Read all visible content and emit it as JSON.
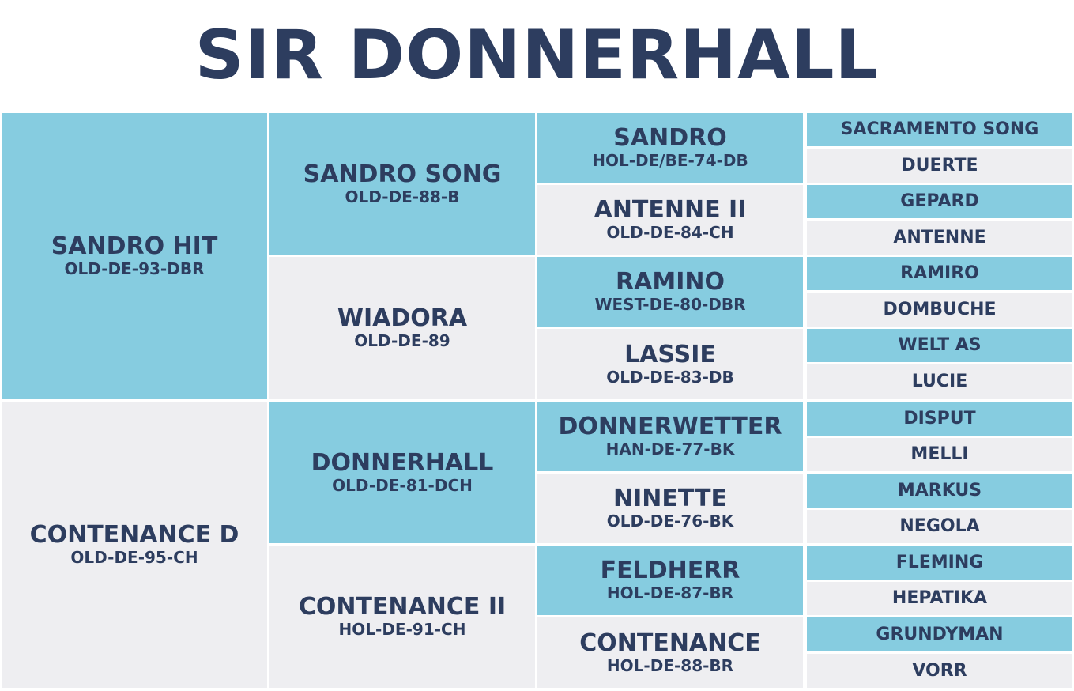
{
  "title": "SIR DONNERHALL",
  "colors": {
    "text": "#2d3d5f",
    "sire_bg": "#86cce0",
    "dam_bg": "#eeeef1"
  },
  "pedigree": {
    "parents": [
      {
        "name": "SANDRO HIT",
        "reg": "OLD-DE-93-DBR"
      },
      {
        "name": "CONTENANCE D",
        "reg": "OLD-DE-95-CH"
      }
    ],
    "grandparents": [
      {
        "name": "SANDRO SONG",
        "reg": "OLD-DE-88-B"
      },
      {
        "name": "WIADORA",
        "reg": "OLD-DE-89"
      },
      {
        "name": "DONNERHALL",
        "reg": "OLD-DE-81-DCH"
      },
      {
        "name": "CONTENANCE II",
        "reg": "HOL-DE-91-CH"
      }
    ],
    "great_grandparents": [
      {
        "name": "SANDRO",
        "reg": "HOL-DE/BE-74-DB"
      },
      {
        "name": "ANTENNE II",
        "reg": "OLD-DE-84-CH"
      },
      {
        "name": "RAMINO",
        "reg": "WEST-DE-80-DBR"
      },
      {
        "name": "LASSIE",
        "reg": "OLD-DE-83-DB"
      },
      {
        "name": "DONNERWETTER",
        "reg": "HAN-DE-77-BK"
      },
      {
        "name": "NINETTE",
        "reg": "OLD-DE-76-BK"
      },
      {
        "name": "FELDHERR",
        "reg": "HOL-DE-87-BR"
      },
      {
        "name": "CONTENANCE",
        "reg": "HOL-DE-88-BR"
      }
    ],
    "great_great_grandparents": [
      "SACRAMENTO SONG",
      "DUERTE",
      "GEPARD",
      "ANTENNE",
      "RAMIRO",
      "DOMBUCHE",
      "WELT AS",
      "LUCIE",
      "DISPUT",
      "MELLI",
      "MARKUS",
      "NEGOLA",
      "FLEMING",
      "HEPATIKA",
      "GRUNDYMAN",
      "VORR"
    ]
  }
}
